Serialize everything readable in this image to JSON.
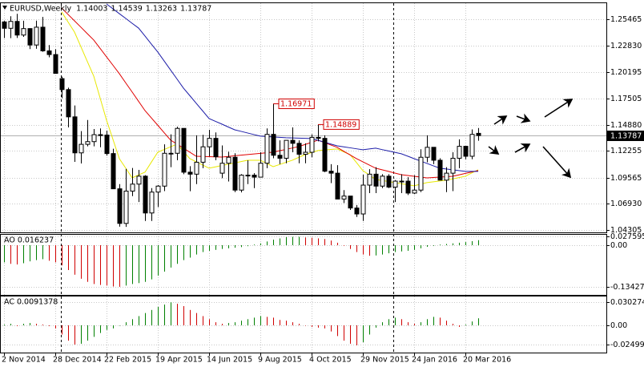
{
  "chart_data": [
    {
      "type": "candlestick",
      "title": "EURUSD,Weekly",
      "categories": [
        "2 Nov 2014",
        null,
        null,
        null,
        null,
        null,
        null,
        null,
        "28 Dec 2014",
        null,
        null,
        null,
        null,
        null,
        null,
        null,
        "22 Feb 2015",
        null,
        null,
        null,
        null,
        null,
        null,
        null,
        "19 Apr 2015",
        null,
        null,
        null,
        null,
        null,
        null,
        null,
        "14 Jun 2015",
        null,
        null,
        null,
        null,
        null,
        null,
        null,
        "9 Aug 2015",
        null,
        null,
        null,
        null,
        null,
        null,
        null,
        "4 Oct 2015",
        null,
        null,
        null,
        null,
        null,
        null,
        null,
        "29 Nov 2015",
        null,
        null,
        null,
        null,
        null,
        null,
        null,
        "24 Jan 2016",
        null,
        null,
        null,
        null,
        null,
        null,
        null,
        "20 Mar 2016",
        null,
        null
      ],
      "open": [
        1.252,
        1.2456,
        1.2525,
        1.2388,
        1.2453,
        1.2288,
        1.2467,
        1.2229,
        1.2192,
        1.195,
        1.184,
        1.1566,
        1.1204,
        1.129,
        1.1317,
        1.1387,
        1.1383,
        1.1197,
        1.0843,
        1.0495,
        1.082,
        1.089,
        1.097,
        1.06,
        1.081,
        1.087,
        1.12,
        1.12,
        1.145,
        1.101,
        1.099,
        1.111,
        1.1265,
        1.135,
        1.1,
        1.11,
        1.116,
        1.083,
        1.098,
        1.098,
        1.096,
        1.11,
        1.139,
        1.118,
        1.115,
        1.133,
        1.13,
        1.119,
        1.121,
        1.136,
        1.135,
        1.102,
        1.1,
        1.074,
        1.077,
        1.065,
        1.059,
        1.088,
        1.099,
        1.087,
        1.097,
        1.086,
        1.092,
        1.092,
        1.08,
        1.083,
        1.116,
        1.126,
        1.113,
        1.093,
        1.1,
        1.115,
        1.127,
        1.117,
        1.14003
      ],
      "high": [
        1.253,
        1.2577,
        1.2601,
        1.2532,
        1.2456,
        1.2533,
        1.257,
        1.2287,
        1.2246,
        1.197,
        1.186,
        1.168,
        1.1423,
        1.1534,
        1.1444,
        1.145,
        1.1428,
        1.1245,
        1.089,
        1.1043,
        1.1052,
        1.1033,
        1.098,
        1.085,
        1.088,
        1.129,
        1.139,
        1.1467,
        1.145,
        1.107,
        1.138,
        1.1385,
        1.1436,
        1.141,
        1.1279,
        1.1215,
        1.12,
        1.099,
        1.113,
        1.1,
        1.121,
        1.145,
        1.16971,
        1.133,
        1.133,
        1.146,
        1.133,
        1.13,
        1.139,
        1.14889,
        1.138,
        1.109,
        1.108,
        1.083,
        1.077,
        1.068,
        1.0985,
        1.104,
        1.106,
        1.099,
        1.099,
        1.093,
        1.099,
        1.096,
        1.098,
        1.124,
        1.138,
        1.126,
        1.115,
        1.106,
        1.121,
        1.134,
        1.127,
        1.144,
        1.14539
      ],
      "low": [
        1.2358,
        1.2357,
        1.2359,
        1.237,
        1.2247,
        1.225,
        1.222,
        1.2164,
        1.2002,
        1.1754,
        1.146,
        1.1114,
        1.1098,
        1.127,
        1.127,
        1.1261,
        1.1176,
        1.084,
        1.0462,
        1.046,
        1.0769,
        1.071,
        1.052,
        1.052,
        1.066,
        1.082,
        1.106,
        1.113,
        1.099,
        1.0819,
        1.089,
        1.105,
        1.117,
        1.113,
        1.095,
        1.0916,
        1.081,
        1.0807,
        1.089,
        1.085,
        1.096,
        1.105,
        1.115,
        1.109,
        1.11,
        1.121,
        1.11,
        1.11,
        1.116,
        1.132,
        1.101,
        1.09,
        1.074,
        1.07,
        1.063,
        1.056,
        1.052,
        1.08,
        1.08,
        1.085,
        1.085,
        1.071,
        1.08,
        1.078,
        1.079,
        1.081,
        1.111,
        1.109,
        1.093,
        1.081,
        1.082,
        1.105,
        1.114,
        1.114,
        1.13263
      ],
      "close": [
        1.2456,
        1.2525,
        1.2388,
        1.2453,
        1.2288,
        1.2467,
        1.2229,
        1.2192,
        1.2003,
        1.184,
        1.1566,
        1.1204,
        1.129,
        1.1317,
        1.1387,
        1.1383,
        1.1197,
        1.0843,
        1.0495,
        1.082,
        1.089,
        1.097,
        1.06,
        1.081,
        1.087,
        1.12,
        1.12,
        1.145,
        1.101,
        1.099,
        1.111,
        1.1265,
        1.135,
        1.1165,
        1.11,
        1.116,
        1.083,
        1.098,
        1.098,
        1.096,
        1.11,
        1.139,
        1.118,
        1.115,
        1.133,
        1.13,
        1.119,
        1.121,
        1.136,
        1.135,
        1.102,
        1.1,
        1.074,
        1.077,
        1.065,
        1.059,
        1.088,
        1.099,
        1.087,
        1.097,
        1.086,
        1.092,
        1.092,
        1.08,
        1.083,
        1.116,
        1.126,
        1.113,
        1.093,
        1.1,
        1.115,
        1.127,
        1.117,
        1.139,
        1.13787
      ],
      "up_color": "#ffffff",
      "down_color": "#000000",
      "lines": [
        {
          "color": "#e8e800",
          "values": [
            null,
            null,
            null,
            null,
            null,
            null,
            null,
            null,
            null,
            1.262,
            1.2519,
            1.2418,
            1.2271,
            1.2123,
            1.1976,
            1.1755,
            1.1533,
            1.134,
            1.1146,
            1.105,
            1.0953,
            1.0982,
            1.101,
            1.1111,
            1.1211,
            1.1238,
            1.1265,
            1.1292,
            1.1219,
            1.1146,
            1.1114,
            1.1082,
            1.105,
            1.1063,
            1.1077,
            1.109,
            1.1103,
            1.1117,
            1.113,
            1.113,
            1.113,
            1.1098,
            1.1066,
            1.1087,
            1.1109,
            1.113,
            1.1159,
            1.1187,
            1.1207,
            1.1227,
            1.1232,
            1.1238,
            1.1243,
            1.1215,
            1.1187,
            1.1107,
            1.1026,
            1.0982,
            1.0937,
            1.0926,
            1.0916,
            1.0905,
            1.0894,
            1.0884,
            1.0873,
            1.0889,
            1.0905,
            1.0913,
            1.0921,
            1.0929,
            1.0942,
            1.0956,
            1.0969,
            1.1002,
            1.1034
          ]
        },
        {
          "color": "#e00000",
          "values": [
            null,
            null,
            null,
            null,
            null,
            null,
            null,
            null,
            null,
            1.266,
            1.2595,
            1.2531,
            1.2467,
            1.2402,
            1.2338,
            1.2254,
            1.2169,
            1.2085,
            1.2,
            1.1907,
            1.1815,
            1.1722,
            1.1629,
            1.1555,
            1.1481,
            1.1406,
            1.1332,
            1.1292,
            1.1251,
            1.1211,
            1.117,
            1.1168,
            1.1166,
            1.1164,
            1.1162,
            1.1168,
            1.1175,
            1.1181,
            1.1187,
            1.1193,
            1.1199,
            1.1205,
            1.1211,
            1.1225,
            1.1239,
            1.1253,
            1.1267,
            1.1289,
            1.131,
            1.1332,
            1.1308,
            1.1283,
            1.1259,
            1.1221,
            1.1184,
            1.1146,
            1.1114,
            1.1082,
            1.105,
            1.1034,
            1.1018,
            1.1001,
            1.0985,
            1.0977,
            1.0969,
            1.0961,
            1.0953,
            1.0957,
            1.0961,
            1.0965,
            1.0969,
            1.0983,
            1.0998,
            1.1012,
            1.1026
          ]
        },
        {
          "color": "#1c1ca8",
          "values": [
            null,
            null,
            null,
            null,
            null,
            null,
            null,
            null,
            null,
            null,
            null,
            null,
            null,
            null,
            null,
            null,
            1.27,
            1.2652,
            1.2603,
            1.2555,
            1.2506,
            1.2458,
            1.2378,
            1.2297,
            1.2217,
            1.2127,
            1.2036,
            1.1946,
            1.1855,
            1.1779,
            1.1702,
            1.1626,
            1.1549,
            1.1521,
            1.1493,
            1.1464,
            1.1436,
            1.142,
            1.1404,
            1.1388,
            1.1372,
            1.1368,
            1.1364,
            1.136,
            1.1356,
            1.1354,
            1.1352,
            1.135,
            1.1348,
            1.133,
            1.1312,
            1.1293,
            1.1275,
            1.1265,
            1.1255,
            1.1245,
            1.1235,
            1.1243,
            1.1251,
            1.1237,
            1.1223,
            1.1209,
            1.1195,
            1.1171,
            1.1146,
            1.1122,
            1.1098,
            1.1074,
            1.105,
            1.1042,
            1.1034,
            1.1026,
            1.1018,
            1.1018,
            1.1018
          ]
        }
      ],
      "annotations": [
        1.16971,
        1.14889
      ],
      "ylim": [
        1.0405,
        1.27
      ],
      "yticks": [
        1.25465,
        {
          "value": 1.2283,
          "label": "1.22830"
        },
        1.20195,
        1.17505,
        {
          "value": 1.1488,
          "label": "1.14880"
        },
        1.12255,
        1.09565,
        {
          "value": 1.0693,
          "label": "1.06930"
        },
        1.04305
      ],
      "grid": true
    },
    {
      "type": "histogram",
      "title": "AO",
      "values": [
        -0.055,
        -0.06,
        -0.062,
        -0.058,
        -0.052,
        -0.048,
        -0.045,
        -0.05,
        -0.055,
        -0.065,
        -0.08,
        -0.095,
        -0.108,
        -0.118,
        -0.125,
        -0.128,
        -0.13,
        -0.133,
        -0.134,
        -0.13,
        -0.125,
        -0.122,
        -0.118,
        -0.11,
        -0.098,
        -0.085,
        -0.072,
        -0.06,
        -0.048,
        -0.04,
        -0.03,
        -0.022,
        -0.018,
        -0.015,
        -0.012,
        -0.01,
        -0.008,
        -0.006,
        -0.003,
        0.002,
        0.006,
        0.012,
        0.018,
        0.022,
        0.026,
        0.027,
        0.027,
        0.025,
        0.024,
        0.022,
        0.02,
        0.015,
        0.008,
        -0.002,
        -0.012,
        -0.022,
        -0.03,
        -0.034,
        -0.033,
        -0.03,
        -0.026,
        -0.022,
        -0.02,
        -0.018,
        -0.015,
        -0.01,
        -0.005,
        -0.002,
        0.002,
        0.004,
        0.006,
        0.008,
        0.01,
        0.013,
        0.016237
      ],
      "up_color": "#008000",
      "down_color": "#d00000",
      "ylim": [
        -0.16,
        0.031
      ],
      "yticks": [
        0.027595,
        {
          "value": 0,
          "label": "0.00"
        },
        -0.134275
      ],
      "grid": true
    },
    {
      "type": "histogram",
      "title": "AC",
      "values": [
        0.001,
        0.002,
        -0.001,
        0.002,
        0.003,
        0.002,
        0.001,
        -0.001,
        -0.004,
        -0.012,
        -0.02,
        -0.025,
        -0.024,
        -0.02,
        -0.015,
        -0.01,
        -0.006,
        -0.004,
        0,
        0.004,
        0.008,
        0.012,
        0.016,
        0.02,
        0.024,
        0.027,
        0.03,
        0.028,
        0.025,
        0.02,
        0.016,
        0.012,
        0.008,
        0.004,
        0.002,
        0.003,
        0.004,
        0.006,
        0.008,
        0.01,
        0.012,
        0.011,
        0.01,
        0.007,
        0.006,
        0.004,
        0.002,
        0,
        -0.002,
        -0.003,
        -0.004,
        -0.008,
        -0.014,
        -0.02,
        -0.024,
        -0.026,
        -0.022,
        -0.012,
        -0.003,
        0.004,
        0.008,
        0.01,
        0.008,
        0.004,
        0.002,
        0.004,
        0.008,
        0.011,
        0.01,
        0.006,
        0.002,
        -0.002,
        0.001,
        0.005,
        0.0091378
      ],
      "up_color": "#008000",
      "down_color": "#d00000",
      "ylim": [
        -0.0355,
        0.0365
      ],
      "yticks": [
        0.030274,
        {
          "value": 0,
          "label": "0.00"
        },
        -0.024998
      ],
      "grid": true
    }
  ]
}
